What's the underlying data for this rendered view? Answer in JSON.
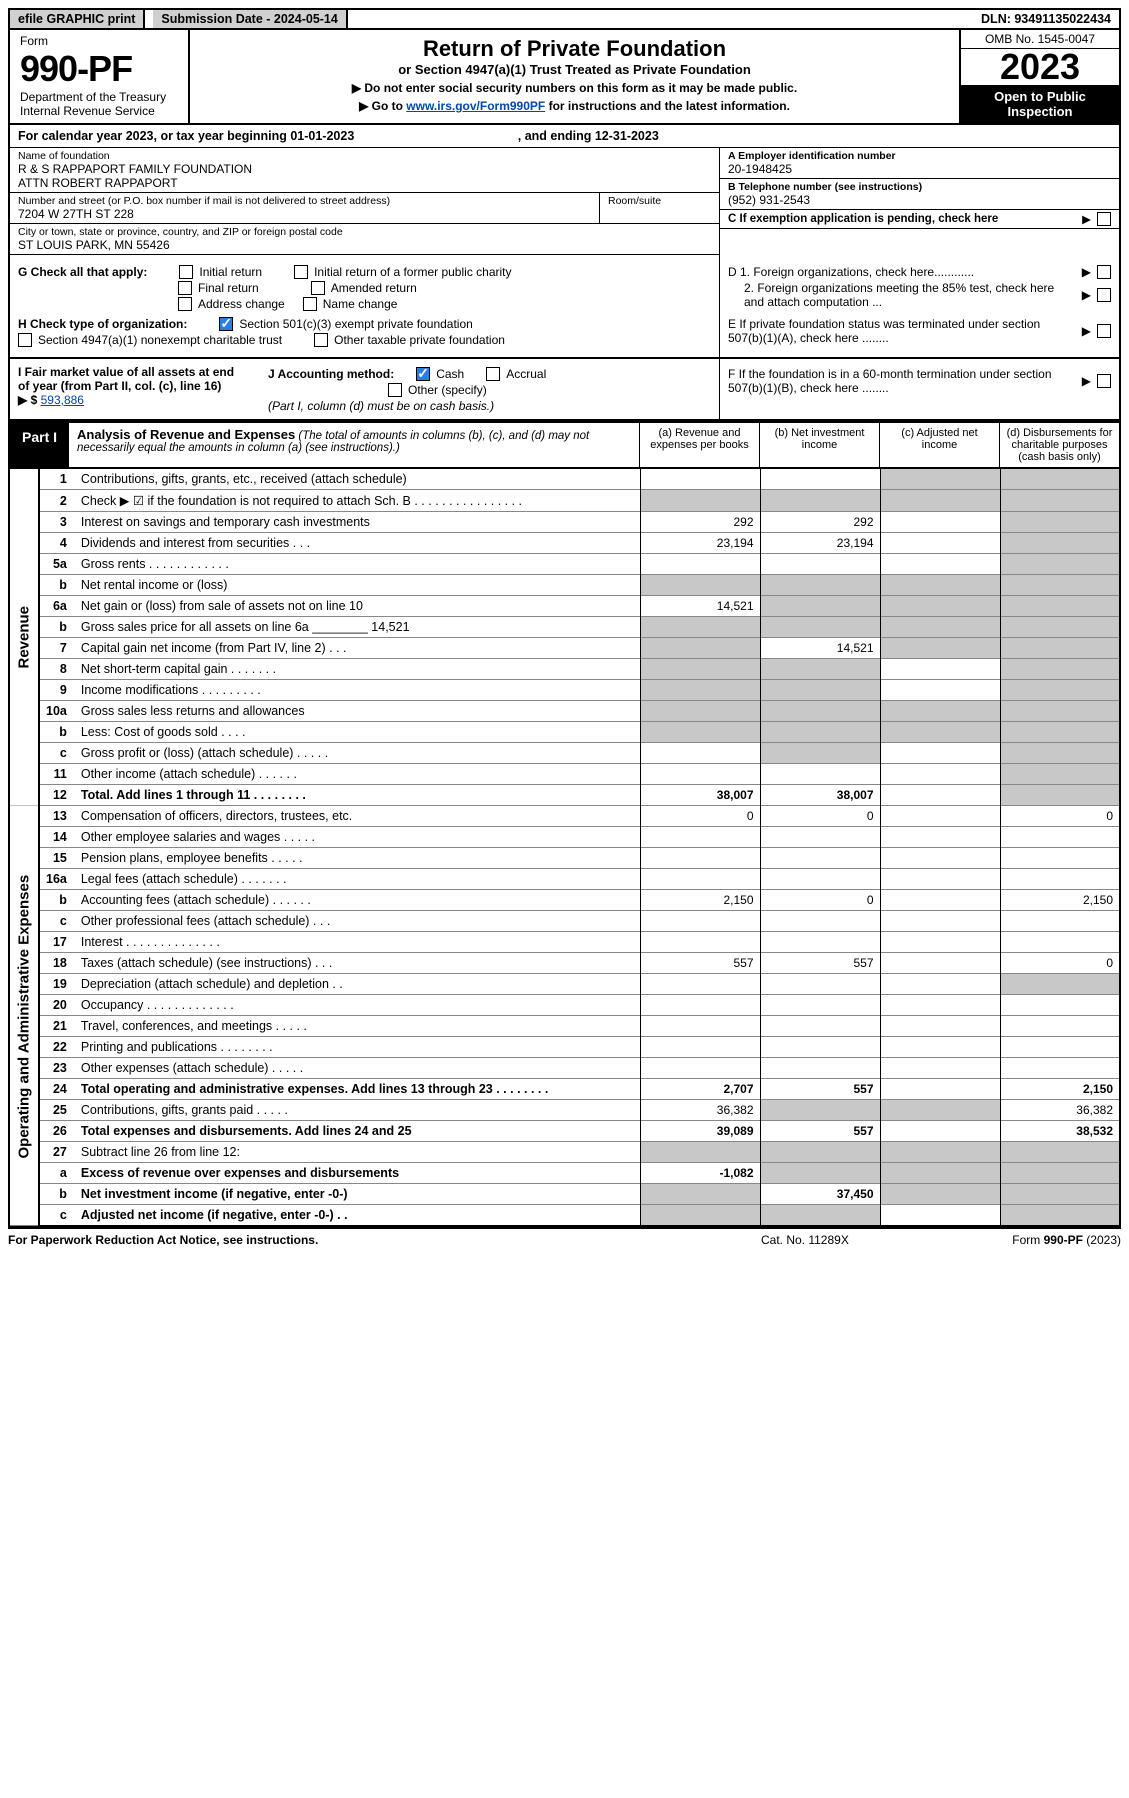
{
  "topbar": {
    "efile": "efile GRAPHIC print",
    "submission_label": "Submission Date - 2024-05-14",
    "dln": "DLN: 93491135022434"
  },
  "header": {
    "form_word": "Form",
    "form_num": "990-PF",
    "dept": "Department of the Treasury",
    "irs": "Internal Revenue Service",
    "title": "Return of Private Foundation",
    "subtitle": "or Section 4947(a)(1) Trust Treated as Private Foundation",
    "note1": "▶ Do not enter social security numbers on this form as it may be made public.",
    "note2_pre": "▶ Go to ",
    "note2_link": "www.irs.gov/Form990PF",
    "note2_post": " for instructions and the latest information.",
    "omb": "OMB No. 1545-0047",
    "year": "2023",
    "open": "Open to Public Inspection"
  },
  "cal": {
    "text": "For calendar year 2023, or tax year beginning 01-01-2023",
    "ending": ", and ending 12-31-2023"
  },
  "id": {
    "name_label": "Name of foundation",
    "name1": "R & S RAPPAPORT FAMILY FOUNDATION",
    "name2": "ATTN ROBERT RAPPAPORT",
    "addr_label": "Number and street (or P.O. box number if mail is not delivered to street address)",
    "addr": "7204 W 27TH ST 228",
    "room_label": "Room/suite",
    "city_label": "City or town, state or province, country, and ZIP or foreign postal code",
    "city": "ST LOUIS PARK, MN  55426",
    "ein_label": "A Employer identification number",
    "ein": "20-1948425",
    "tel_label": "B Telephone number (see instructions)",
    "tel": "(952) 931-2543",
    "c_label": "C If exemption application is pending, check here"
  },
  "g": {
    "label": "G Check all that apply:",
    "initial": "Initial return",
    "initial_public": "Initial return of a former public charity",
    "final": "Final return",
    "amended": "Amended return",
    "addr": "Address change",
    "namechg": "Name change"
  },
  "d": {
    "d1": "D 1. Foreign organizations, check here............",
    "d2": "2. Foreign organizations meeting the 85% test, check here and attach computation ..."
  },
  "h": {
    "label": "H Check type of organization:",
    "c3": "Section 501(c)(3) exempt private foundation",
    "trust": "Section 4947(a)(1) nonexempt charitable trust",
    "other": "Other taxable private foundation"
  },
  "e": {
    "label": "E  If private foundation status was terminated under section 507(b)(1)(A), check here ........"
  },
  "i": {
    "label": "I Fair market value of all assets at end of year (from Part II, col. (c), line 16)",
    "arrow": "▶ $",
    "value": "593,886"
  },
  "j": {
    "label": "J Accounting method:",
    "cash": "Cash",
    "accrual": "Accrual",
    "other": "Other (specify)",
    "note": "(Part I, column (d) must be on cash basis.)"
  },
  "f": {
    "label": "F  If the foundation is in a 60-month termination under section 507(b)(1)(B), check here ........"
  },
  "part1": {
    "tab": "Part I",
    "title": "Analysis of Revenue and Expenses",
    "sub": " (The total of amounts in columns (b), (c), and (d) may not necessarily equal the amounts in column (a) (see instructions).)",
    "colA": "(a)  Revenue and expenses per books",
    "colB": "(b)  Net investment income",
    "colC": "(c)  Adjusted net income",
    "colD": "(d)  Disbursements for charitable purposes (cash basis only)"
  },
  "side": {
    "revenue": "Revenue",
    "expenses": "Operating and Administrative Expenses"
  },
  "rows": [
    {
      "ln": "1",
      "desc": "Contributions, gifts, grants, etc., received (attach schedule)",
      "a": "",
      "b": "",
      "c_shade": true,
      "d_shade": true
    },
    {
      "ln": "2",
      "desc": "Check ▶ ☑ if the foundation is not required to attach Sch. B  .  .  .  .  .  .  .  .  .  .  .  .  .  .  .  .",
      "a_shade": true,
      "b_shade": true,
      "c_shade": true,
      "d_shade": true
    },
    {
      "ln": "3",
      "desc": "Interest on savings and temporary cash investments",
      "a": "292",
      "b": "292",
      "c": "",
      "d_shade": true
    },
    {
      "ln": "4",
      "desc": "Dividends and interest from securities  .  .  .",
      "a": "23,194",
      "b": "23,194",
      "c": "",
      "d_shade": true
    },
    {
      "ln": "5a",
      "desc": "Gross rents  .  .  .  .  .  .  .  .  .  .  .  .",
      "a": "",
      "b": "",
      "c": "",
      "d_shade": true
    },
    {
      "ln": "b",
      "desc": "Net rental income or (loss)",
      "a_shade": true,
      "b_shade": true,
      "c_shade": true,
      "d_shade": true
    },
    {
      "ln": "6a",
      "desc": "Net gain or (loss) from sale of assets not on line 10",
      "a": "14,521",
      "b_shade": true,
      "c_shade": true,
      "d_shade": true
    },
    {
      "ln": "b",
      "desc": "Gross sales price for all assets on line 6a ________ 14,521",
      "a_shade": true,
      "b_shade": true,
      "c_shade": true,
      "d_shade": true
    },
    {
      "ln": "7",
      "desc": "Capital gain net income (from Part IV, line 2)  .  .  .",
      "a_shade": true,
      "b": "14,521",
      "c_shade": true,
      "d_shade": true
    },
    {
      "ln": "8",
      "desc": "Net short-term capital gain  .  .  .  .  .  .  .",
      "a_shade": true,
      "b_shade": true,
      "c": "",
      "d_shade": true
    },
    {
      "ln": "9",
      "desc": "Income modifications  .  .  .  .  .  .  .  .  .",
      "a_shade": true,
      "b_shade": true,
      "c": "",
      "d_shade": true
    },
    {
      "ln": "10a",
      "desc": "Gross sales less returns and allowances",
      "a_shade": true,
      "b_shade": true,
      "c_shade": true,
      "d_shade": true
    },
    {
      "ln": "b",
      "desc": "Less: Cost of goods sold  .  .  .  .",
      "a_shade": true,
      "b_shade": true,
      "c_shade": true,
      "d_shade": true
    },
    {
      "ln": "c",
      "desc": "Gross profit or (loss) (attach schedule)  .  .  .  .  .",
      "a": "",
      "b_shade": true,
      "c": "",
      "d_shade": true
    },
    {
      "ln": "11",
      "desc": "Other income (attach schedule)  .  .  .  .  .  .",
      "a": "",
      "b": "",
      "c": "",
      "d_shade": true
    },
    {
      "ln": "12",
      "desc": "Total. Add lines 1 through 11  .  .  .  .  .  .  .  .",
      "a": "38,007",
      "b": "38,007",
      "c": "",
      "d_shade": true,
      "bold": true
    }
  ],
  "exp_rows": [
    {
      "ln": "13",
      "desc": "Compensation of officers, directors, trustees, etc.",
      "a": "0",
      "b": "0",
      "c": "",
      "d": "0"
    },
    {
      "ln": "14",
      "desc": "Other employee salaries and wages  .  .  .  .  .",
      "a": "",
      "b": "",
      "c": "",
      "d": ""
    },
    {
      "ln": "15",
      "desc": "Pension plans, employee benefits  .  .  .  .  .",
      "a": "",
      "b": "",
      "c": "",
      "d": ""
    },
    {
      "ln": "16a",
      "desc": "Legal fees (attach schedule)  .  .  .  .  .  .  .",
      "a": "",
      "b": "",
      "c": "",
      "d": ""
    },
    {
      "ln": "b",
      "desc": "Accounting fees (attach schedule)  .  .  .  .  .  .",
      "a": "2,150",
      "b": "0",
      "c": "",
      "d": "2,150"
    },
    {
      "ln": "c",
      "desc": "Other professional fees (attach schedule)  .  .  .",
      "a": "",
      "b": "",
      "c": "",
      "d": ""
    },
    {
      "ln": "17",
      "desc": "Interest  .  .  .  .  .  .  .  .  .  .  .  .  .  .",
      "a": "",
      "b": "",
      "c": "",
      "d": ""
    },
    {
      "ln": "18",
      "desc": "Taxes (attach schedule) (see instructions)  .  .  .",
      "a": "557",
      "b": "557",
      "c": "",
      "d": "0"
    },
    {
      "ln": "19",
      "desc": "Depreciation (attach schedule) and depletion  .  .",
      "a": "",
      "b": "",
      "c": "",
      "d_shade": true
    },
    {
      "ln": "20",
      "desc": "Occupancy  .  .  .  .  .  .  .  .  .  .  .  .  .",
      "a": "",
      "b": "",
      "c": "",
      "d": ""
    },
    {
      "ln": "21",
      "desc": "Travel, conferences, and meetings  .  .  .  .  .",
      "a": "",
      "b": "",
      "c": "",
      "d": ""
    },
    {
      "ln": "22",
      "desc": "Printing and publications  .  .  .  .  .  .  .  .",
      "a": "",
      "b": "",
      "c": "",
      "d": ""
    },
    {
      "ln": "23",
      "desc": "Other expenses (attach schedule)  .  .  .  .  .",
      "a": "",
      "b": "",
      "c": "",
      "d": ""
    },
    {
      "ln": "24",
      "desc": "Total operating and administrative expenses. Add lines 13 through 23  .  .  .  .  .  .  .  .",
      "a": "2,707",
      "b": "557",
      "c": "",
      "d": "2,150",
      "bold": true
    },
    {
      "ln": "25",
      "desc": "Contributions, gifts, grants paid  .  .  .  .  .",
      "a": "36,382",
      "b_shade": true,
      "c_shade": true,
      "d": "36,382"
    },
    {
      "ln": "26",
      "desc": "Total expenses and disbursements. Add lines 24 and 25",
      "a": "39,089",
      "b": "557",
      "c": "",
      "d": "38,532",
      "bold": true
    },
    {
      "ln": "27",
      "desc": "Subtract line 26 from line 12:",
      "a_shade": true,
      "b_shade": true,
      "c_shade": true,
      "d_shade": true
    },
    {
      "ln": "a",
      "desc": "Excess of revenue over expenses and disbursements",
      "a": "-1,082",
      "b_shade": true,
      "c_shade": true,
      "d_shade": true,
      "bold": true
    },
    {
      "ln": "b",
      "desc": "Net investment income (if negative, enter -0-)",
      "a_shade": true,
      "b": "37,450",
      "c_shade": true,
      "d_shade": true,
      "bold": true
    },
    {
      "ln": "c",
      "desc": "Adjusted net income (if negative, enter -0-)  .  .",
      "a_shade": true,
      "b_shade": true,
      "c": "",
      "d_shade": true,
      "bold": true
    }
  ],
  "footer": {
    "left": "For Paperwork Reduction Act Notice, see instructions.",
    "cat": "Cat. No. 11289X",
    "form": "Form 990-PF (2023)"
  },
  "colors": {
    "shade": "#c8c8c8",
    "blue": "#2a7de1",
    "link": "#0645ad"
  }
}
